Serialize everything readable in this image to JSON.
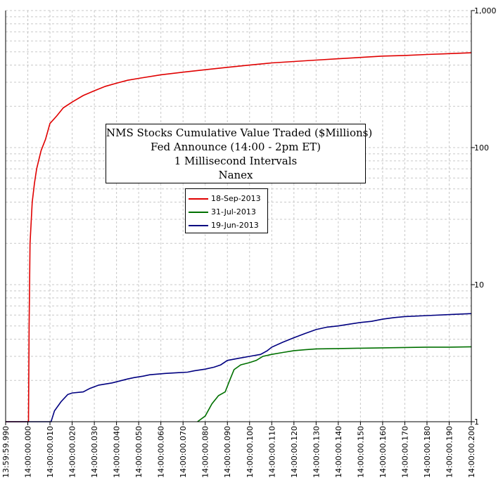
{
  "chart_data": {
    "type": "line",
    "title": "NMS Stocks Cumulative Value Traded ($Millions)",
    "subtitle_lines": [
      "Fed Announce (14:00 - 2pm ET)",
      "1 Millisecond Intervals",
      "Nanex"
    ],
    "y_scale": "log",
    "ylim": [
      1,
      1000
    ],
    "y_ticks": [
      1,
      10,
      100,
      1000
    ],
    "y_tick_labels": [
      "1",
      "10",
      "100",
      "1,000"
    ],
    "x_range_ms": [
      -10,
      200
    ],
    "x_ticks_ms": [
      -10,
      0,
      10,
      20,
      30,
      40,
      50,
      60,
      70,
      80,
      90,
      100,
      110,
      120,
      130,
      140,
      150,
      160,
      170,
      180,
      190,
      200
    ],
    "x_tick_labels": [
      "13:59:59.990",
      "14:00:00.000",
      "14:00:00.010",
      "14:00:00.020",
      "14:00:00.030",
      "14:00:00.040",
      "14:00:00.050",
      "14:00:00.060",
      "14:00:00.070",
      "14:00:00.080",
      "14:00:00.090",
      "14:00:00.100",
      "14:00:00.110",
      "14:00:00.120",
      "14:00:00.130",
      "14:00:00.140",
      "14:00:00.150",
      "14:00:00.160",
      "14:00:00.170",
      "14:00:00.180",
      "14:00:00.190",
      "14:00:00.200"
    ],
    "grid": true,
    "legend_position": "center-left",
    "series": [
      {
        "name": "18-Sep-2013",
        "color": "#e00000",
        "x_ms": [
          -10,
          0,
          0.3,
          0.6,
          1,
          2,
          3,
          4,
          6,
          8,
          10,
          13,
          16,
          20,
          25,
          30,
          35,
          40,
          45,
          50,
          60,
          70,
          80,
          90,
          100,
          110,
          120,
          130,
          140,
          150,
          160,
          170,
          180,
          190,
          200
        ],
        "values": [
          0,
          0,
          1,
          5,
          20,
          40,
          55,
          70,
          95,
          115,
          150,
          170,
          195,
          215,
          240,
          260,
          280,
          295,
          310,
          320,
          340,
          355,
          370,
          385,
          400,
          415,
          425,
          435,
          445,
          455,
          465,
          470,
          478,
          485,
          492
        ]
      },
      {
        "name": "31-Jul-2013",
        "color": "#007000",
        "x_ms": [
          76.5,
          80,
          83,
          86,
          89,
          91,
          93,
          96,
          100,
          103,
          106,
          110,
          115,
          120,
          125,
          130,
          140,
          150,
          160,
          170,
          180,
          190,
          200
        ],
        "values": [
          1,
          1.1,
          1.35,
          1.55,
          1.65,
          2.0,
          2.4,
          2.6,
          2.7,
          2.8,
          3.0,
          3.1,
          3.2,
          3.3,
          3.35,
          3.4,
          3.42,
          3.44,
          3.46,
          3.48,
          3.5,
          3.5,
          3.52
        ]
      },
      {
        "name": "19-Jun-2013",
        "color": "#000080",
        "x_ms": [
          -10,
          1,
          1.2,
          10.5,
          12,
          15,
          18,
          20,
          25,
          28,
          32,
          38,
          45,
          48,
          52,
          55,
          62,
          68,
          72,
          75,
          80,
          84,
          87,
          90,
          95,
          100,
          105,
          108,
          110,
          115,
          120,
          125,
          130,
          135,
          140,
          145,
          150,
          155,
          160,
          165,
          170,
          180,
          190,
          200
        ],
        "values": [
          0.99,
          0.99,
          0.9,
          1,
          1.2,
          1.4,
          1.58,
          1.62,
          1.65,
          1.75,
          1.85,
          1.92,
          2.05,
          2.1,
          2.15,
          2.2,
          2.25,
          2.28,
          2.3,
          2.35,
          2.42,
          2.5,
          2.6,
          2.8,
          2.9,
          3.0,
          3.1,
          3.3,
          3.5,
          3.8,
          4.1,
          4.4,
          4.7,
          4.9,
          5.0,
          5.15,
          5.3,
          5.4,
          5.6,
          5.75,
          5.85,
          5.95,
          6.05,
          6.15
        ]
      }
    ]
  }
}
